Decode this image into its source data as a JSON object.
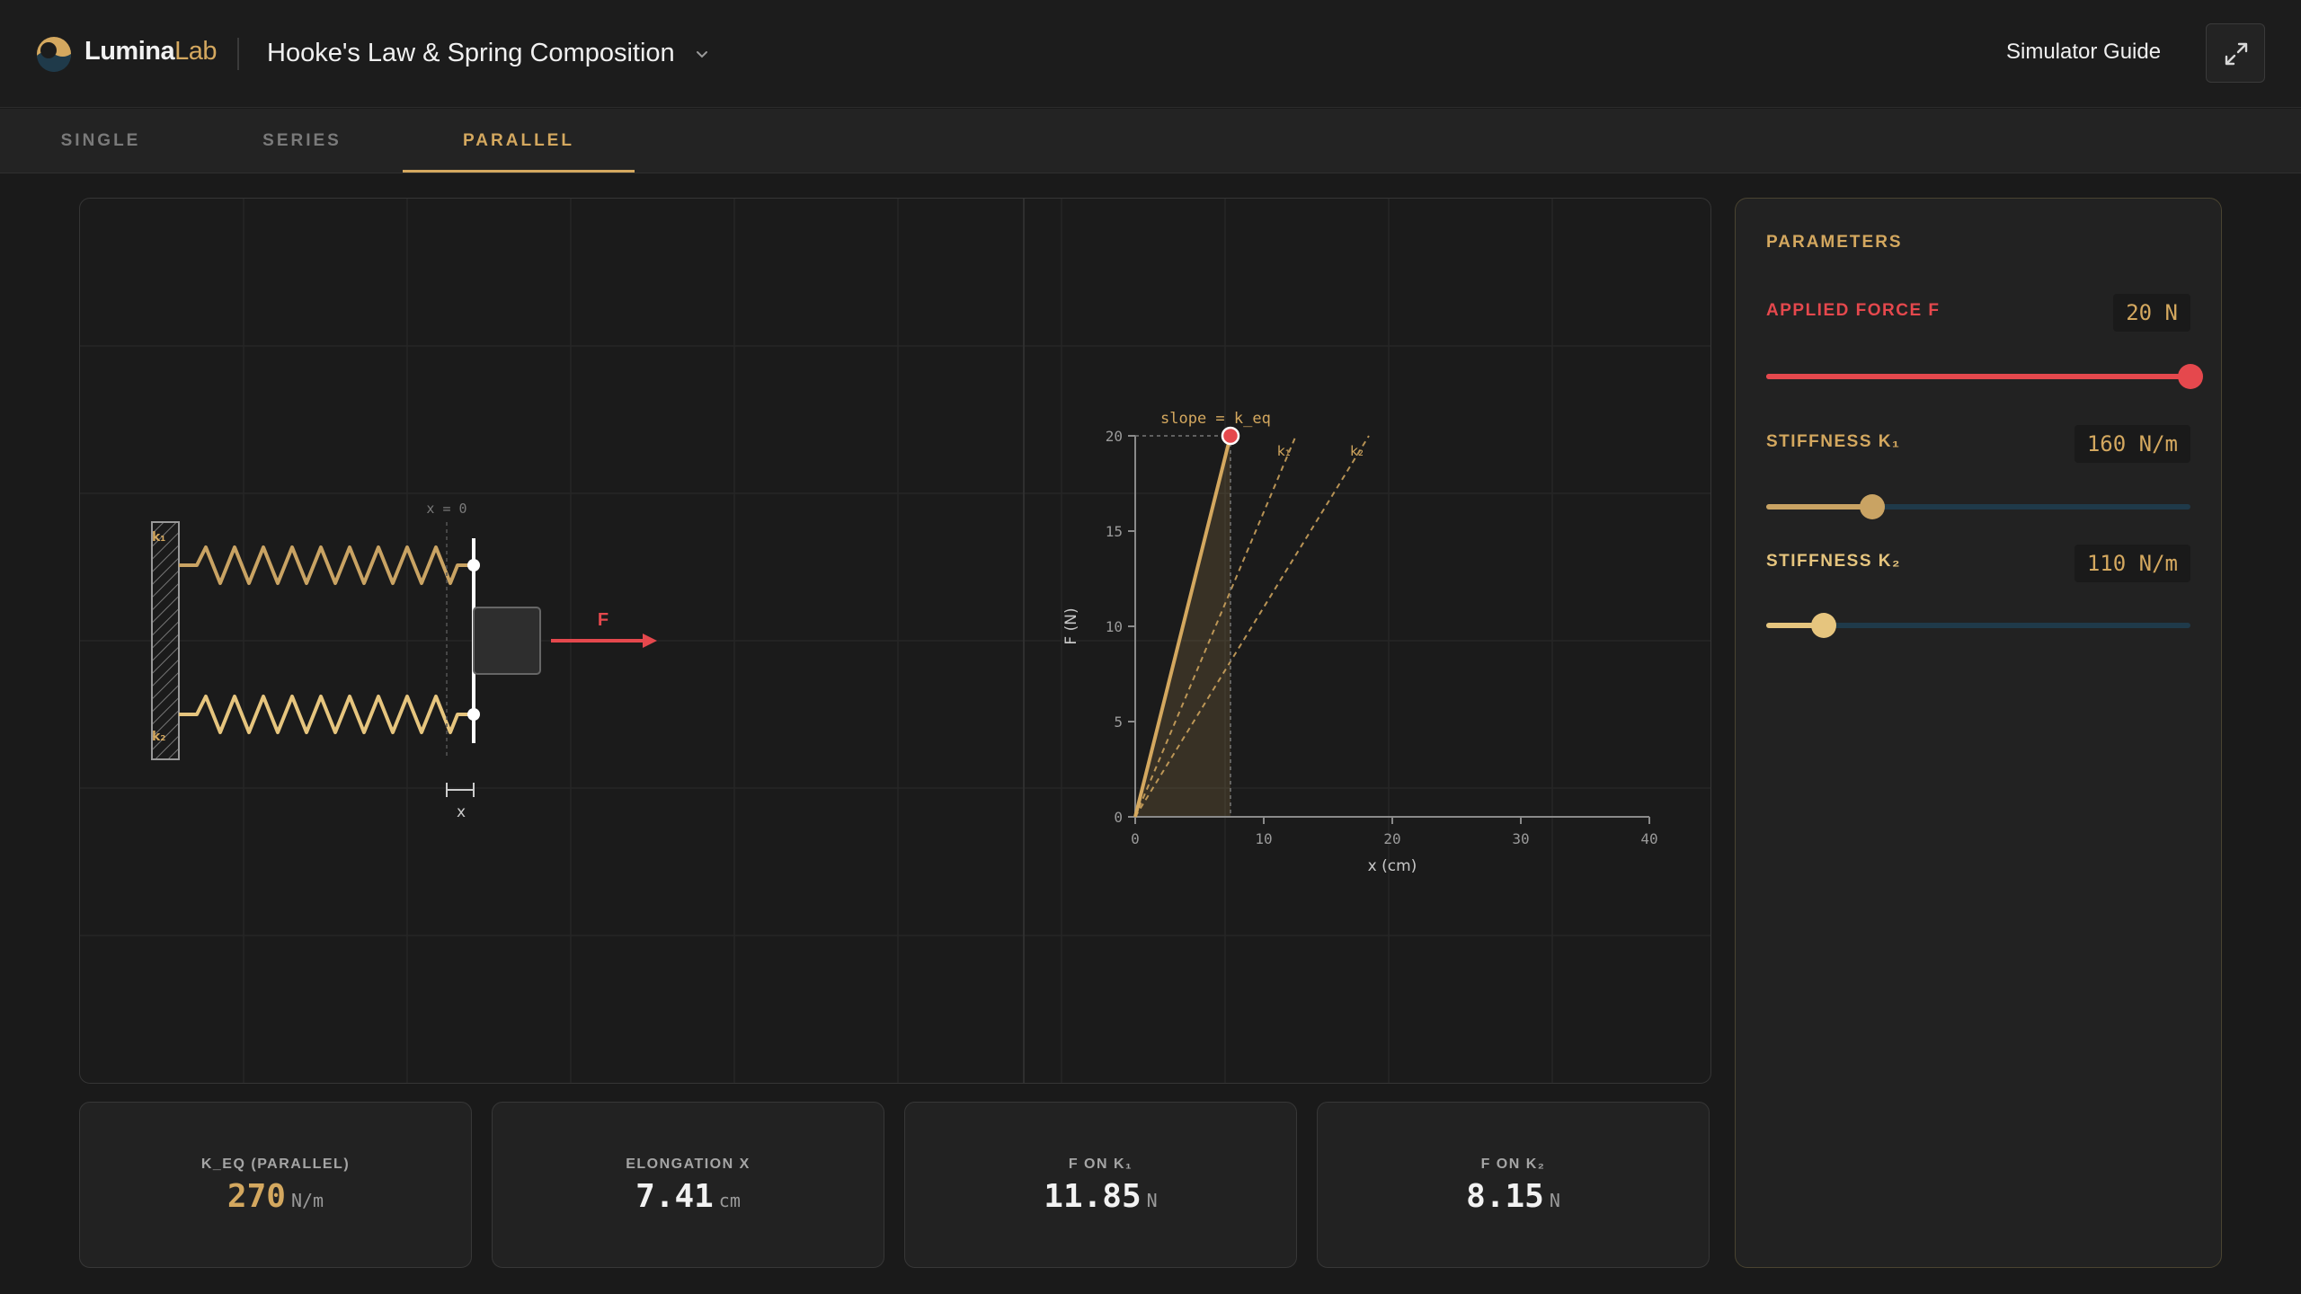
{
  "header": {
    "brand_primary": "Lumina",
    "brand_secondary": "Lab",
    "title": "Hooke's Law & Spring Composition",
    "guide_label": "Simulator Guide"
  },
  "tabs": [
    {
      "label": "SINGLE",
      "active": false
    },
    {
      "label": "SERIES",
      "active": false
    },
    {
      "label": "PARALLEL",
      "active": true
    }
  ],
  "diagram": {
    "zero_label": "x = 0",
    "spring_top_label": "k₁",
    "spring_bottom_label": "k₂",
    "force_label": "F",
    "elongation_label": "x"
  },
  "chart_data": {
    "type": "line",
    "annotation": "slope = k_eq",
    "xlabel": "x (cm)",
    "ylabel": "F (N)",
    "xlim": [
      0,
      40
    ],
    "ylim": [
      0,
      20
    ],
    "xticks": [
      "0",
      "10",
      "20",
      "30",
      "40"
    ],
    "yticks": [
      "0",
      "5",
      "10",
      "15",
      "20"
    ],
    "grid": true,
    "series": [
      {
        "name": "k_eq",
        "style": "solid",
        "slope_N_per_cm": 2.7,
        "points": [
          [
            0,
            0
          ],
          [
            7.41,
            20
          ]
        ]
      },
      {
        "name": "k₁",
        "style": "dashed",
        "slope_N_per_cm": 1.6,
        "points": [
          [
            0,
            0
          ],
          [
            12.5,
            20
          ]
        ]
      },
      {
        "name": "k₂",
        "style": "dashed",
        "slope_N_per_cm": 1.1,
        "points": [
          [
            0,
            0
          ],
          [
            18.18,
            20
          ]
        ]
      }
    ],
    "operating_point": {
      "x": 7.41,
      "y": 20
    }
  },
  "stats": [
    {
      "label": "K_EQ (PARALLEL)",
      "value": "270",
      "unit": "N/m"
    },
    {
      "label": "ELONGATION X",
      "value": "7.41",
      "unit": "cm"
    },
    {
      "label": "F ON K₁",
      "value": "11.85",
      "unit": "N"
    },
    {
      "label": "F ON K₂",
      "value": "8.15",
      "unit": "N"
    }
  ],
  "params": {
    "title": "PARAMETERS",
    "force": {
      "label": "APPLIED FORCE F",
      "value_text": "20 N",
      "value": 20,
      "level": 1.0
    },
    "k1": {
      "label": "STIFFNESS K₁",
      "value_text": "160 N/m",
      "value": 160,
      "level": 0.25
    },
    "k2": {
      "label": "STIFFNESS K₂",
      "value_text": "110 N/m",
      "value": 110,
      "level": 0.136
    }
  },
  "colors": {
    "gold": "#d4a85f",
    "red": "#e5484d",
    "spring": "#e0c07a",
    "track_dark": "#1f3a4a"
  }
}
